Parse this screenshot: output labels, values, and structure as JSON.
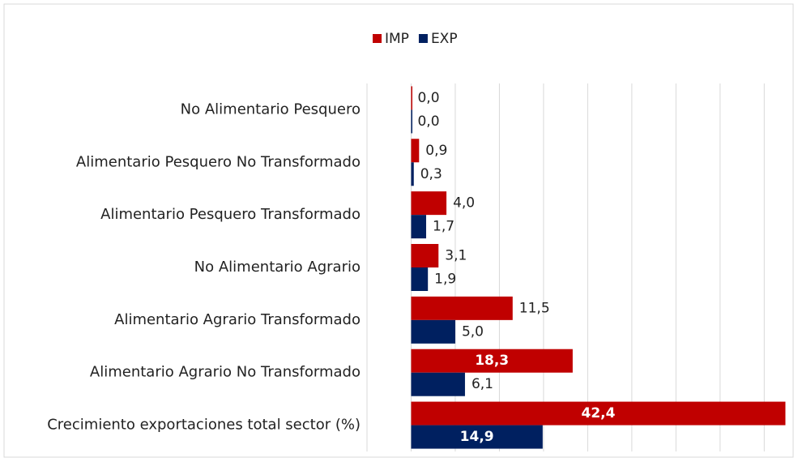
{
  "chart_data": {
    "type": "hbar",
    "categories": [
      "No Alimentario Pesquero",
      "Alimentario Pesquero No Transformado",
      "Alimentario Pesquero Transformado",
      "No Alimentario Agrario",
      "Alimentario Agrario Transformado",
      "Alimentario Agrario No Transformado",
      "Crecimiento exportaciones total sector (%)"
    ],
    "series": [
      {
        "name": "IMP",
        "color": "#c00000",
        "values": [
          0.0,
          0.9,
          4.0,
          3.1,
          11.5,
          18.3,
          42.4
        ],
        "value_labels": [
          "0,0",
          "0,9",
          "4,0",
          "3,1",
          "11,5",
          "18,3",
          "42,4"
        ]
      },
      {
        "name": "EXP",
        "color": "#002060",
        "values": [
          0.0,
          0.3,
          1.7,
          1.9,
          5.0,
          6.1,
          14.9
        ],
        "value_labels": [
          "0,0",
          "0,3",
          "1,7",
          "1,9",
          "5,0",
          "6,1",
          "14,9"
        ]
      }
    ],
    "xlim": [
      -5,
      43
    ],
    "xticks": [
      -5,
      0,
      5,
      10,
      15,
      20,
      25,
      30,
      35,
      40
    ],
    "grid": true,
    "legend": "top"
  }
}
